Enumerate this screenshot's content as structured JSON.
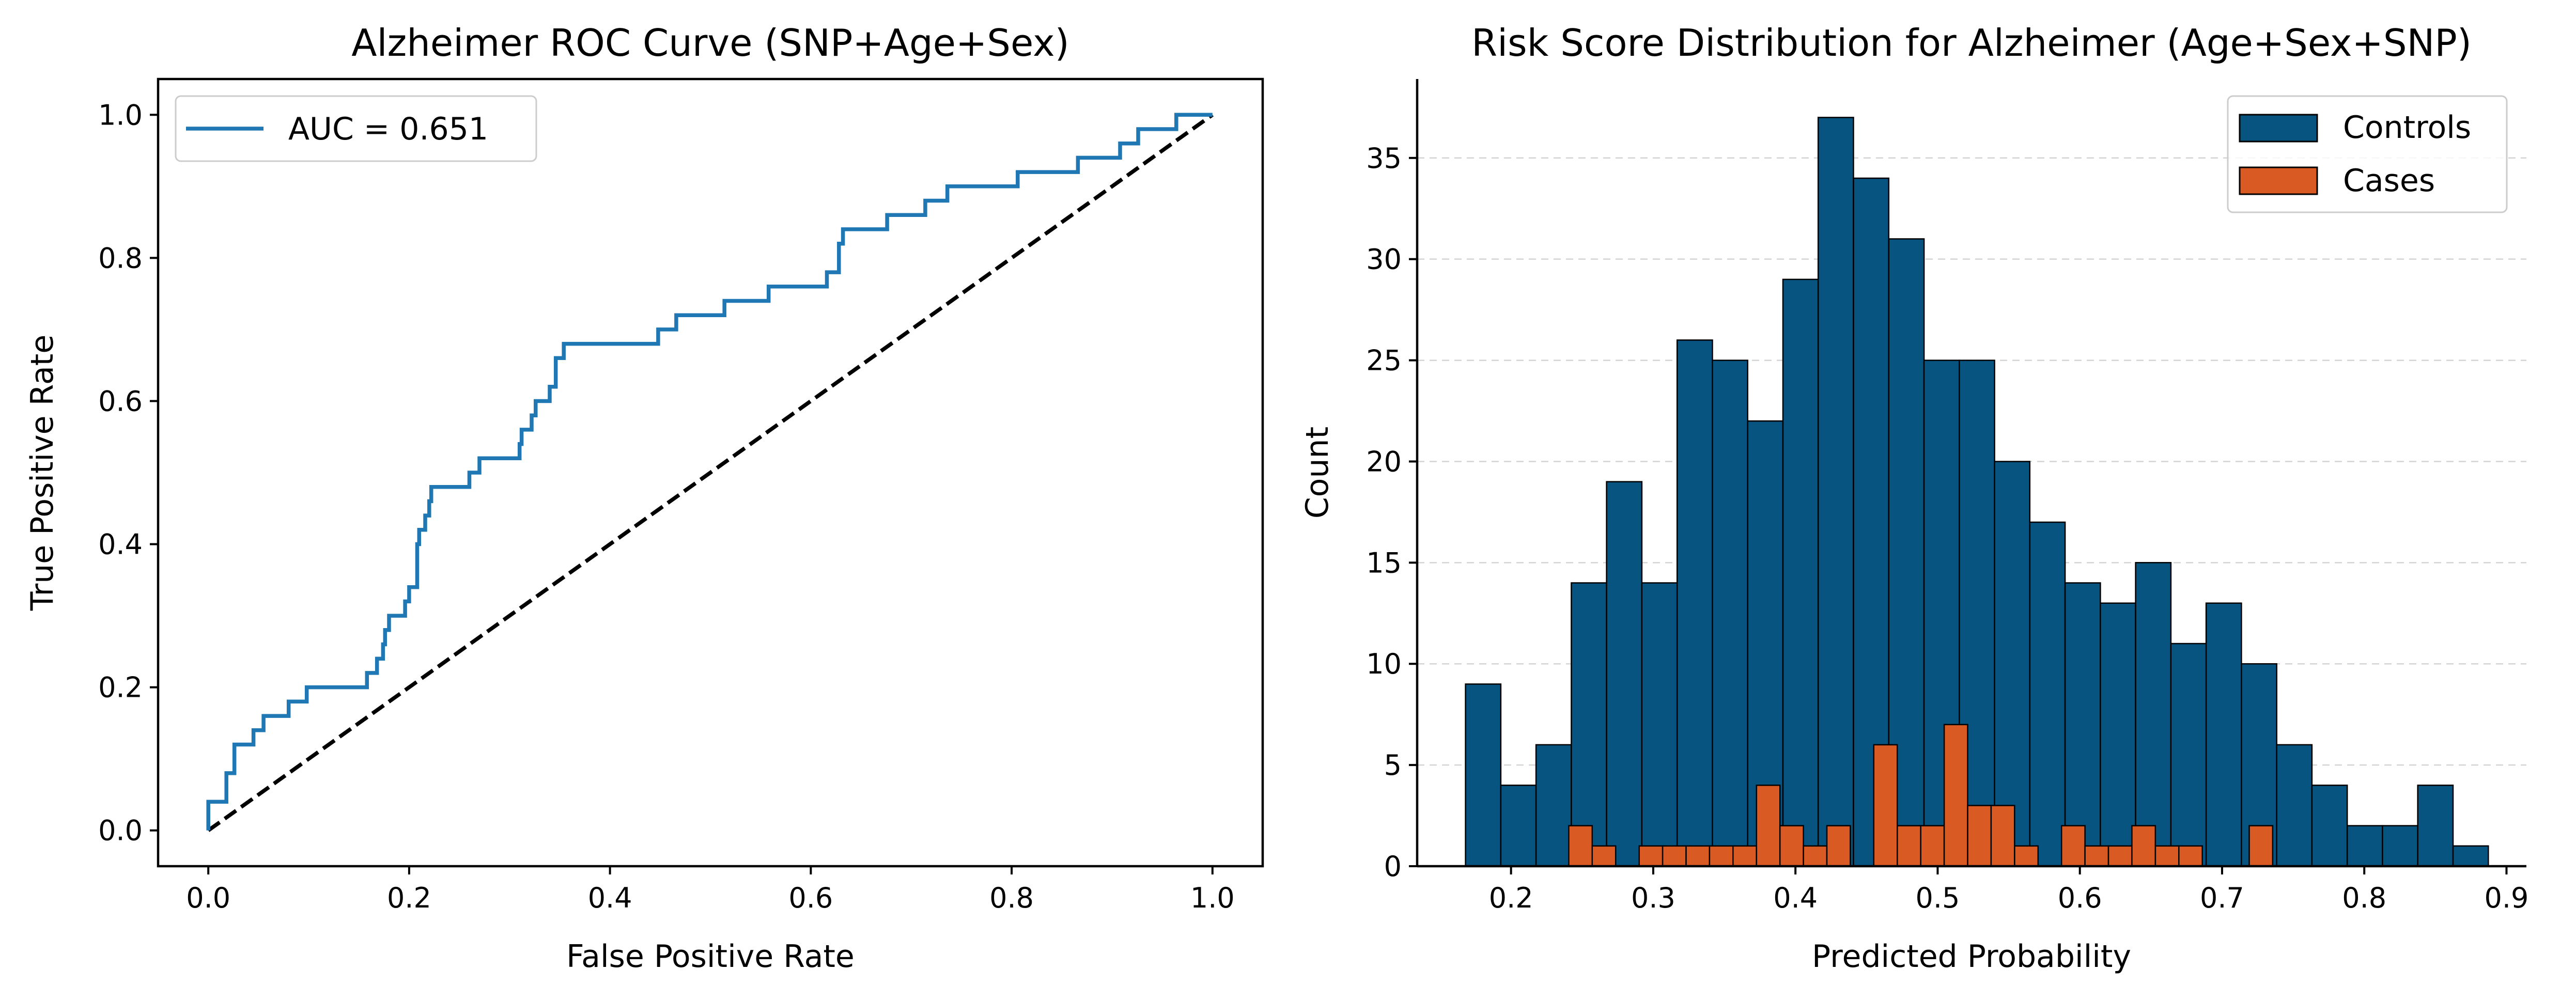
{
  "chart_data": [
    {
      "type": "line",
      "title": "Alzheimer ROC Curve (SNP+Age+Sex)",
      "xlabel": "False Positive Rate",
      "ylabel": "True Positive Rate",
      "xlim": [
        -0.05,
        1.05
      ],
      "ylim": [
        -0.05,
        1.05
      ],
      "xticks": [
        0.0,
        0.2,
        0.4,
        0.6,
        0.8,
        1.0
      ],
      "xtick_labels": [
        "0.0",
        "0.2",
        "0.4",
        "0.6",
        "0.8",
        "1.0"
      ],
      "yticks": [
        0.0,
        0.2,
        0.4,
        0.6,
        0.8,
        1.0
      ],
      "ytick_labels": [
        "0.0",
        "0.2",
        "0.4",
        "0.6",
        "0.8",
        "1.0"
      ],
      "legend_position": "upper-left",
      "spines": "all",
      "series": [
        {
          "name": "AUC = 0.651",
          "color": "#1f77b4",
          "style": "solid",
          "points": [
            [
              0,
              0
            ],
            [
              0,
              0.04
            ],
            [
              0.018,
              0.04
            ],
            [
              0.018,
              0.08
            ],
            [
              0.026,
              0.08
            ],
            [
              0.026,
              0.12
            ],
            [
              0.045,
              0.12
            ],
            [
              0.045,
              0.14
            ],
            [
              0.055,
              0.14
            ],
            [
              0.055,
              0.16
            ],
            [
              0.08,
              0.16
            ],
            [
              0.08,
              0.18
            ],
            [
              0.098,
              0.18
            ],
            [
              0.098,
              0.2
            ],
            [
              0.158,
              0.2
            ],
            [
              0.158,
              0.22
            ],
            [
              0.168,
              0.22
            ],
            [
              0.168,
              0.24
            ],
            [
              0.174,
              0.24
            ],
            [
              0.174,
              0.26
            ],
            [
              0.176,
              0.26
            ],
            [
              0.176,
              0.28
            ],
            [
              0.18,
              0.28
            ],
            [
              0.18,
              0.3
            ],
            [
              0.196,
              0.3
            ],
            [
              0.196,
              0.32
            ],
            [
              0.2,
              0.32
            ],
            [
              0.2,
              0.34
            ],
            [
              0.208,
              0.34
            ],
            [
              0.208,
              0.4
            ],
            [
              0.21,
              0.4
            ],
            [
              0.21,
              0.42
            ],
            [
              0.216,
              0.42
            ],
            [
              0.216,
              0.44
            ],
            [
              0.22,
              0.44
            ],
            [
              0.22,
              0.46
            ],
            [
              0.222,
              0.46
            ],
            [
              0.222,
              0.48
            ],
            [
              0.26,
              0.48
            ],
            [
              0.26,
              0.5
            ],
            [
              0.27,
              0.5
            ],
            [
              0.27,
              0.52
            ],
            [
              0.31,
              0.52
            ],
            [
              0.31,
              0.54
            ],
            [
              0.312,
              0.54
            ],
            [
              0.312,
              0.56
            ],
            [
              0.322,
              0.56
            ],
            [
              0.322,
              0.58
            ],
            [
              0.326,
              0.58
            ],
            [
              0.326,
              0.6
            ],
            [
              0.34,
              0.6
            ],
            [
              0.34,
              0.62
            ],
            [
              0.346,
              0.62
            ],
            [
              0.346,
              0.66
            ],
            [
              0.354,
              0.66
            ],
            [
              0.354,
              0.68
            ],
            [
              0.448,
              0.68
            ],
            [
              0.448,
              0.7
            ],
            [
              0.466,
              0.7
            ],
            [
              0.466,
              0.72
            ],
            [
              0.514,
              0.72
            ],
            [
              0.514,
              0.74
            ],
            [
              0.558,
              0.74
            ],
            [
              0.558,
              0.76
            ],
            [
              0.616,
              0.76
            ],
            [
              0.616,
              0.78
            ],
            [
              0.628,
              0.78
            ],
            [
              0.628,
              0.82
            ],
            [
              0.632,
              0.82
            ],
            [
              0.632,
              0.84
            ],
            [
              0.676,
              0.84
            ],
            [
              0.676,
              0.86
            ],
            [
              0.714,
              0.86
            ],
            [
              0.714,
              0.88
            ],
            [
              0.736,
              0.88
            ],
            [
              0.736,
              0.9
            ],
            [
              0.806,
              0.9
            ],
            [
              0.806,
              0.92
            ],
            [
              0.866,
              0.92
            ],
            [
              0.866,
              0.94
            ],
            [
              0.908,
              0.94
            ],
            [
              0.908,
              0.96
            ],
            [
              0.926,
              0.96
            ],
            [
              0.926,
              0.98
            ],
            [
              0.964,
              0.98
            ],
            [
              0.964,
              1.0
            ],
            [
              1.0,
              1.0
            ]
          ]
        },
        {
          "name": "",
          "color": "#000000",
          "style": "dashed",
          "points": [
            [
              0,
              0
            ],
            [
              1,
              1
            ]
          ]
        }
      ]
    },
    {
      "type": "bar",
      "subtype": "histogram",
      "title": "Risk Score Distribution for Alzheimer (Age+Sex+SNP)",
      "xlabel": "Predicted Probability",
      "ylabel": "Count",
      "xlim": [
        0.134,
        0.914
      ],
      "ylim": [
        0,
        38.9
      ],
      "xticks": [
        0.2,
        0.3,
        0.4,
        0.5,
        0.6,
        0.7,
        0.8,
        0.9
      ],
      "xtick_labels": [
        "0.2",
        "0.3",
        "0.4",
        "0.5",
        "0.6",
        "0.7",
        "0.8",
        "0.9"
      ],
      "yticks": [
        0,
        5,
        10,
        15,
        20,
        25,
        30,
        35
      ],
      "ytick_labels": [
        "0",
        "5",
        "10",
        "15",
        "20",
        "25",
        "30",
        "35"
      ],
      "grid": "y-dashed",
      "legend_position": "upper-right",
      "spines": "left-bottom",
      "series": [
        {
          "name": "Controls",
          "color": "#075481",
          "bin_start": 0.168,
          "bin_width": 0.0248,
          "values": [
            9,
            4,
            6,
            14,
            19,
            14,
            26,
            25,
            22,
            29,
            37,
            34,
            31,
            25,
            25,
            20,
            17,
            14,
            13,
            15,
            11,
            13,
            10,
            6,
            4,
            2,
            2,
            4,
            1
          ]
        },
        {
          "name": "Cases",
          "color": "#d95a23",
          "bin_start": 0.2406,
          "bin_width": 0.0165,
          "values": [
            2,
            1,
            0,
            1,
            1,
            1,
            1,
            1,
            4,
            2,
            1,
            2,
            0,
            6,
            2,
            2,
            7,
            3,
            3,
            1,
            0,
            2,
            1,
            1,
            2,
            1,
            1,
            0,
            0,
            2
          ]
        }
      ]
    }
  ]
}
